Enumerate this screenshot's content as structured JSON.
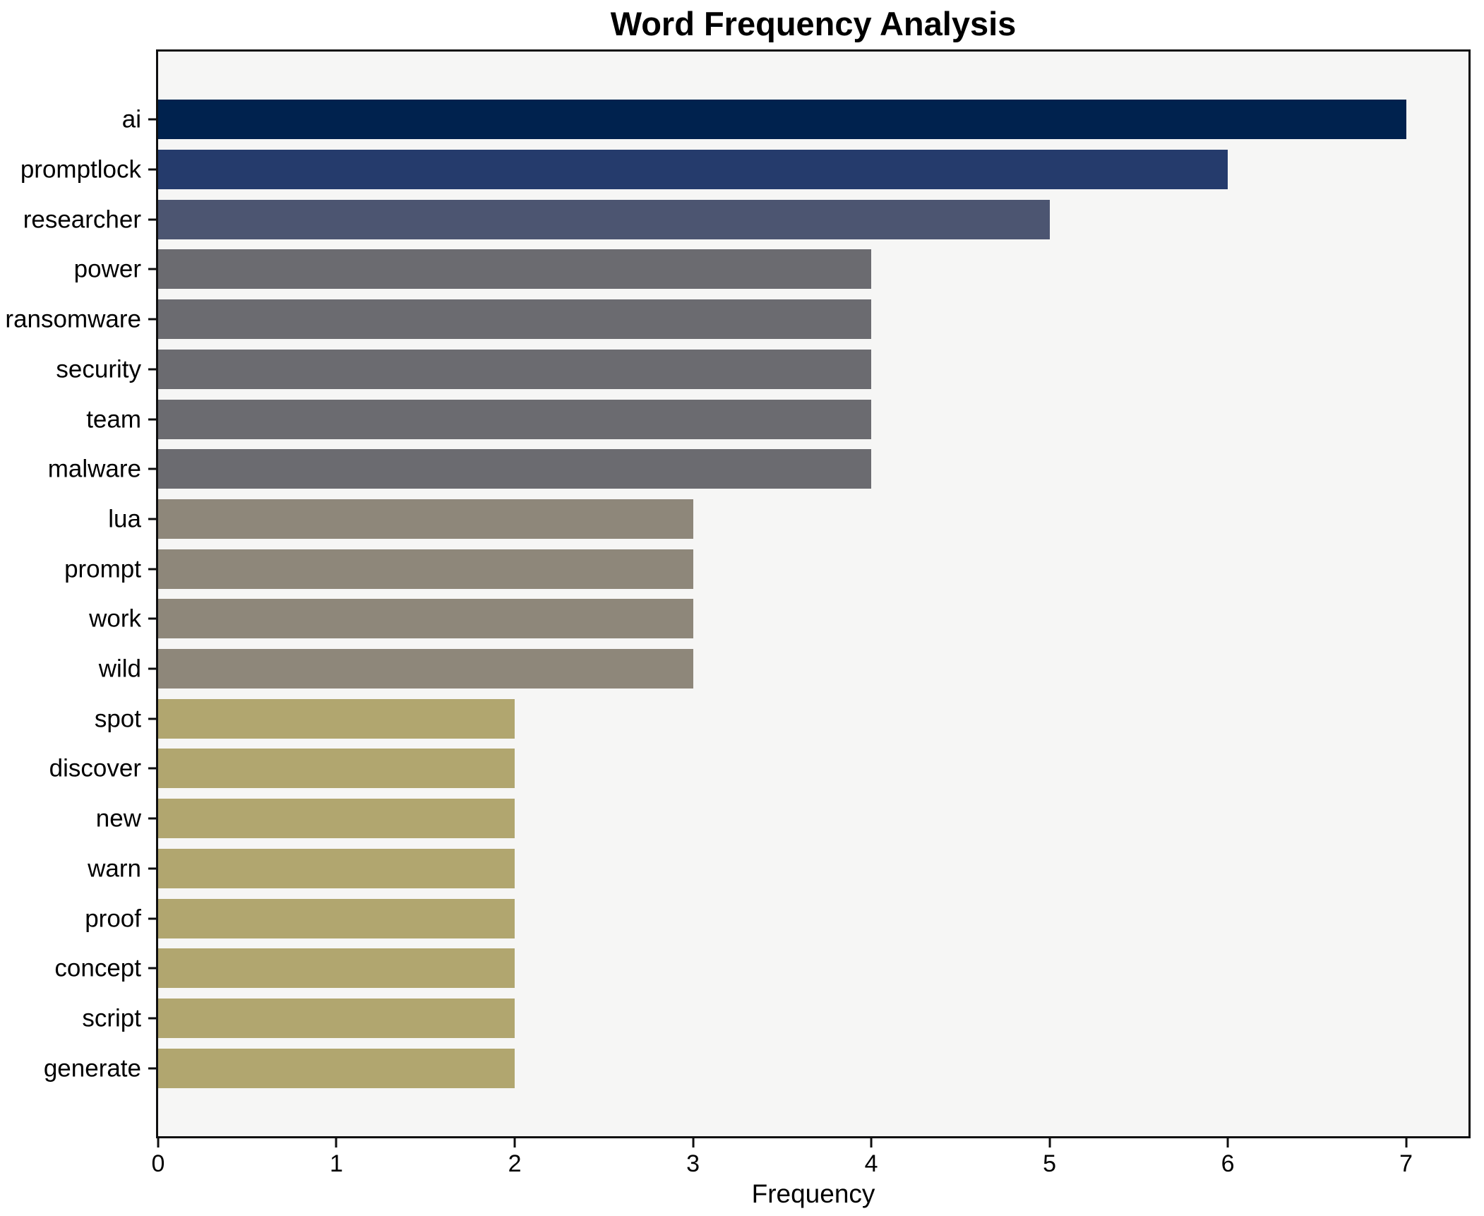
{
  "chart_data": {
    "type": "bar",
    "orientation": "horizontal",
    "title": "Word Frequency Analysis",
    "xlabel": "Frequency",
    "ylabel": "",
    "categories": [
      "ai",
      "promptlock",
      "researcher",
      "power",
      "ransomware",
      "security",
      "team",
      "malware",
      "lua",
      "prompt",
      "work",
      "wild",
      "spot",
      "discover",
      "new",
      "warn",
      "proof",
      "concept",
      "script",
      "generate"
    ],
    "values": [
      7,
      6,
      5,
      4,
      4,
      4,
      4,
      4,
      3,
      3,
      3,
      3,
      2,
      2,
      2,
      2,
      2,
      2,
      2,
      2
    ],
    "bar_colors": [
      "#00224e",
      "#253b6c",
      "#4c5571",
      "#6b6b70",
      "#6b6b70",
      "#6b6b70",
      "#6b6b70",
      "#6b6b70",
      "#8e877a",
      "#8e877a",
      "#8e877a",
      "#8e877a",
      "#b1a66f",
      "#b1a66f",
      "#b1a66f",
      "#b1a66f",
      "#b1a66f",
      "#b1a66f",
      "#b1a66f",
      "#b1a66f"
    ],
    "xlim": [
      0,
      7.35
    ],
    "xticks": [
      0,
      1,
      2,
      3,
      4,
      5,
      6,
      7
    ],
    "grid": false,
    "legend": null,
    "colors": {
      "figure_bg": "#ffffff",
      "plot_bg": "#f6f6f5",
      "spine": "#0f0f0f",
      "text": "#000000"
    }
  }
}
